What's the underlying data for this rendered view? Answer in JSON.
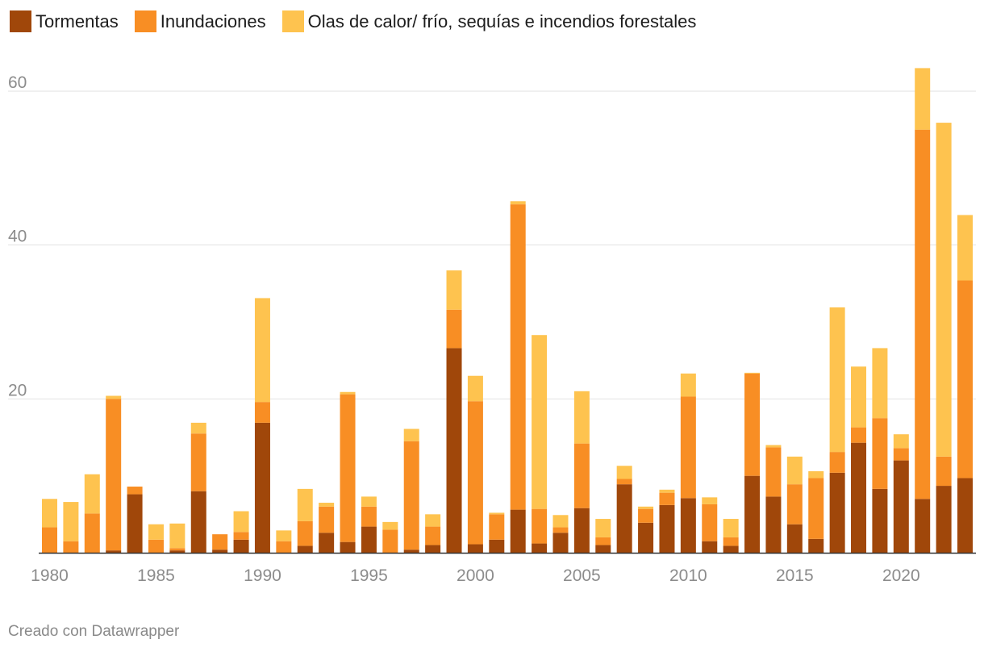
{
  "chart_data": {
    "type": "bar",
    "stacked": true,
    "x_start": 1980,
    "x_end": 2023,
    "ylim": [
      0,
      63
    ],
    "yticks": [
      20,
      40,
      60
    ],
    "xticks": [
      "1980",
      "1985",
      "1990",
      "1995",
      "2000",
      "2005",
      "2010",
      "2015",
      "2020"
    ],
    "grid": true,
    "legend_position": "top-left",
    "series": [
      {
        "name": "Tormentas",
        "color": "#a0470a",
        "values": [
          0,
          0,
          0,
          0.3,
          7.6,
          0,
          0.3,
          8,
          0.4,
          1.7,
          16.9,
          0,
          0.9,
          2.6,
          1.4,
          3.4,
          0,
          0.4,
          1,
          26.6,
          1.1,
          1.7,
          5.6,
          1.2,
          2.6,
          5.8,
          1,
          8.9,
          3.9,
          6.2,
          7.1,
          1.5,
          0.9,
          10,
          7.3,
          3.7,
          1.8,
          10.4,
          14.3,
          8.3,
          12,
          7,
          8.7,
          9.7
        ]
      },
      {
        "name": "Inundaciones",
        "color": "#f88e24",
        "values": [
          3.3,
          1.5,
          5.1,
          19.7,
          1,
          1.7,
          0.3,
          7.5,
          2,
          1,
          2.7,
          1.5,
          3.2,
          3.4,
          19.2,
          2.6,
          3,
          14.1,
          2.4,
          5,
          18.6,
          3.3,
          39.7,
          4.5,
          0.7,
          8.4,
          1,
          0.7,
          1.8,
          1.6,
          13.2,
          4.8,
          1.1,
          13.3,
          6.4,
          5.2,
          7.9,
          2.7,
          2,
          9.2,
          1.6,
          48,
          3.8,
          25.7
        ]
      },
      {
        "name": "Olas de calor/ frío, sequías e incendios forestales",
        "color": "#fec34f",
        "values": [
          3.7,
          5.1,
          5.1,
          0.4,
          0,
          2,
          3.2,
          1.4,
          0,
          2.7,
          13.5,
          1.4,
          4.2,
          0.5,
          0.3,
          1.3,
          1,
          1.6,
          1.6,
          5.1,
          3.3,
          0.2,
          0.4,
          22.6,
          1.6,
          6.8,
          2.4,
          1.7,
          0.3,
          0.4,
          3,
          0.9,
          2.4,
          0.1,
          0.3,
          3.6,
          0.9,
          18.8,
          7.9,
          9.1,
          1.8,
          8,
          43.4,
          8.5
        ]
      }
    ]
  },
  "footer": {
    "credit": "Creado con Datawrapper"
  }
}
